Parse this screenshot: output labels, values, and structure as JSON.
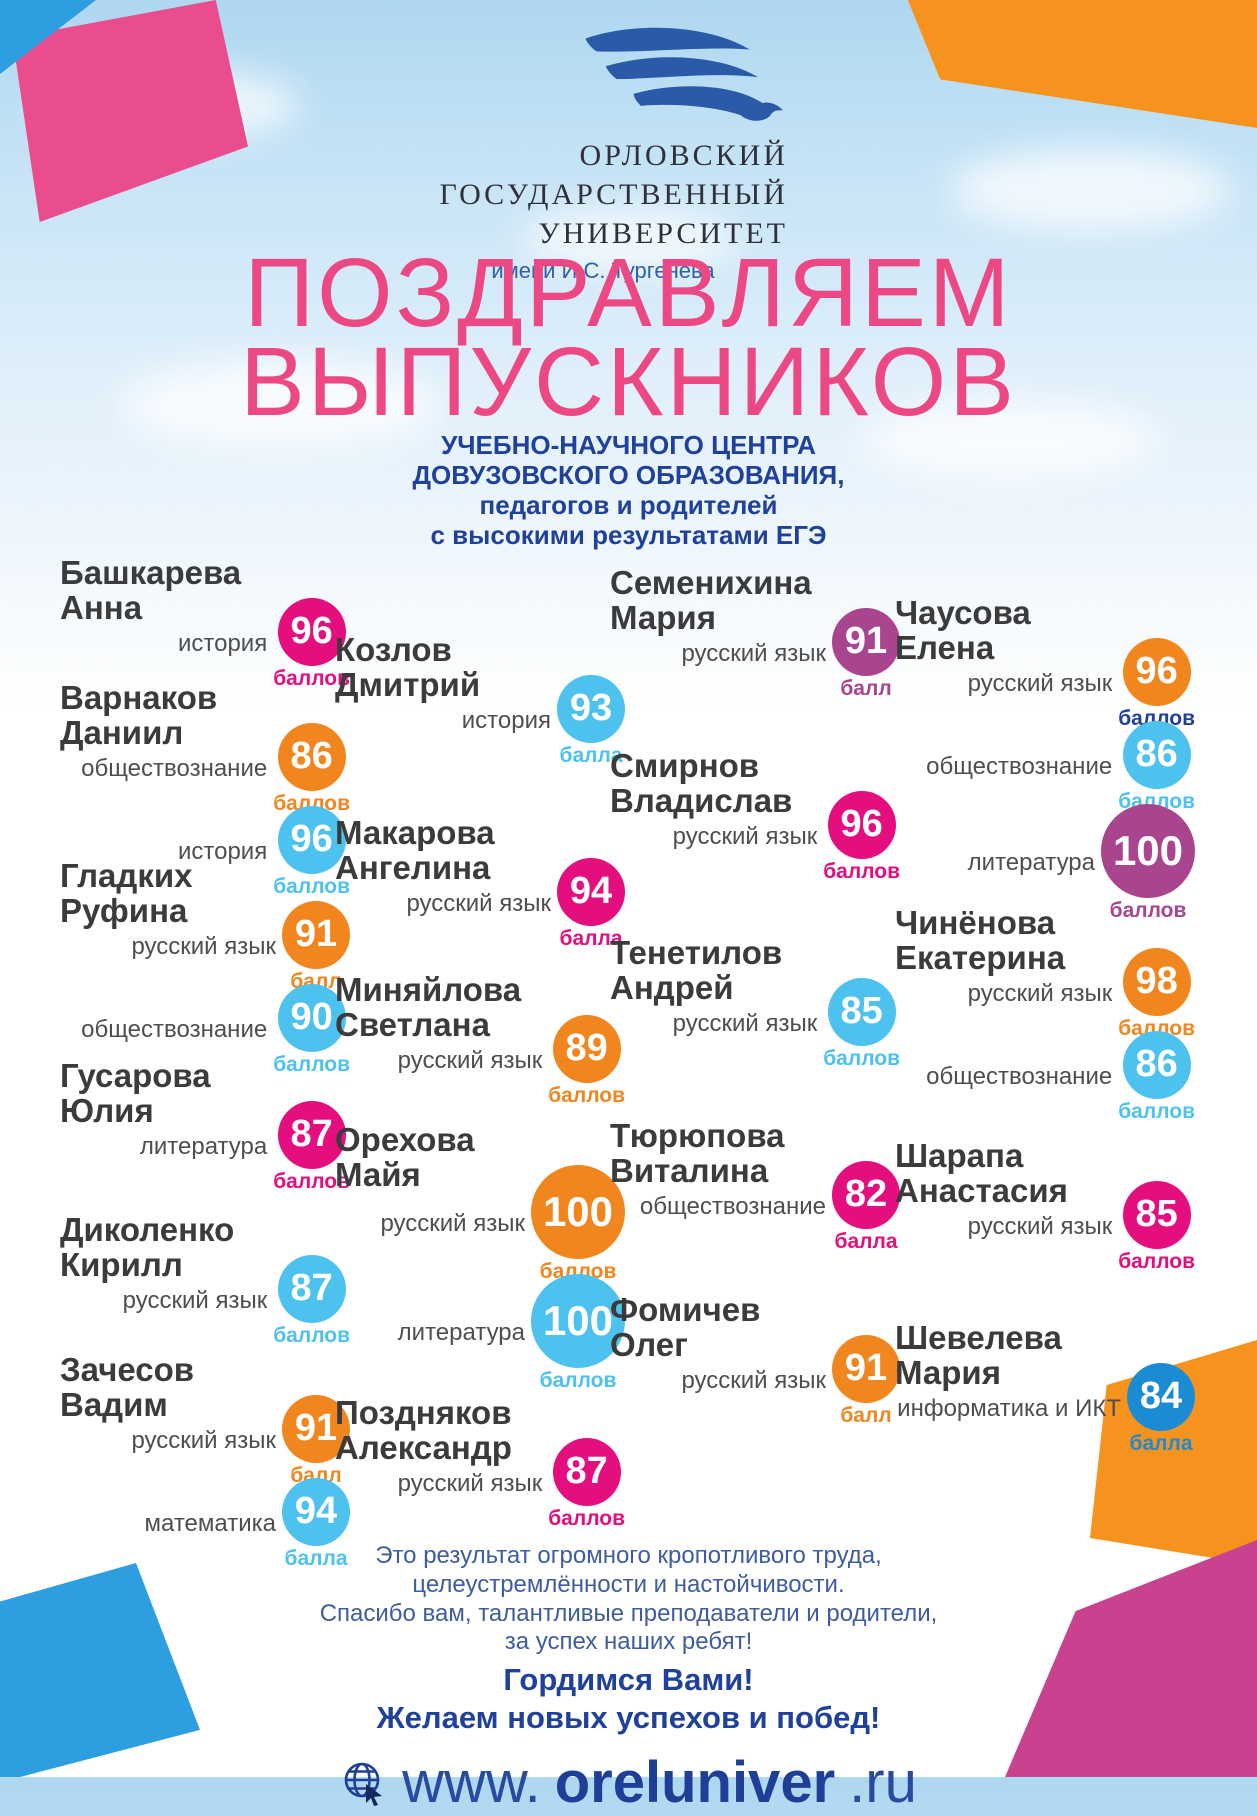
{
  "logo": {
    "line1": "ОРЛОВСКИЙ",
    "line2": "ГОСУДАРСТВЕННЫЙ",
    "line3": "УНИВЕРСИТЕТ",
    "subline": "имени И.С. Тургенева"
  },
  "title": {
    "line1": "ПОЗДРАВЛЯЕМ",
    "line2": "ВЫПУСКНИКОВ"
  },
  "subtitle": {
    "line1": "УЧЕБНО-НАУЧНОГО ЦЕНТРА",
    "line2": "ДОВУЗОВСКОГО ОБРАЗОВАНИЯ,",
    "line3": "педагогов и родителей",
    "line4": "с высокими результатами ЕГЭ"
  },
  "palette": {
    "pink": "#E40E7E",
    "orange": "#F1861F",
    "lightblue": "#4DC2EF",
    "blue": "#1B8BD3",
    "purple": "#A9458F",
    "navy": "#1F419B",
    "title_pink": "#EC4884"
  },
  "students": [
    {
      "name": [
        "Башкарева",
        "Анна"
      ],
      "scores": [
        {
          "subject": "история",
          "value": "96",
          "unit": "баллов",
          "color": "pink"
        }
      ]
    },
    {
      "name": [
        "Варнаков",
        "Даниил"
      ],
      "scores": [
        {
          "subject": "обществознание",
          "value": "86",
          "unit": "баллов",
          "color": "orange"
        },
        {
          "subject": "история",
          "value": "96",
          "unit": "баллов",
          "color": "lightblue"
        }
      ]
    },
    {
      "name": [
        "Гладких",
        "Руфина"
      ],
      "scores": [
        {
          "subject": "русский язык",
          "value": "91",
          "unit": "балл",
          "color": "orange"
        },
        {
          "subject": "обществознание",
          "value": "90",
          "unit": "баллов",
          "color": "lightblue"
        }
      ]
    },
    {
      "name": [
        "Гусарова",
        "Юлия"
      ],
      "scores": [
        {
          "subject": "литература",
          "value": "87",
          "unit": "баллов",
          "color": "pink"
        }
      ]
    },
    {
      "name": [
        "Диколенко",
        "Кирилл"
      ],
      "scores": [
        {
          "subject": "русский язык",
          "value": "87",
          "unit": "баллов",
          "color": "lightblue"
        }
      ]
    },
    {
      "name": [
        "Зачесов",
        "Вадим"
      ],
      "scores": [
        {
          "subject": "русский язык",
          "value": "91",
          "unit": "балл",
          "color": "orange"
        },
        {
          "subject": "математика",
          "value": "94",
          "unit": "балла",
          "color": "lightblue"
        }
      ]
    },
    {
      "name": [
        "Козлов",
        "Дмитрий"
      ],
      "scores": [
        {
          "subject": "история",
          "value": "93",
          "unit": "балла",
          "color": "lightblue"
        }
      ]
    },
    {
      "name": [
        "Макарова",
        "Ангелина"
      ],
      "scores": [
        {
          "subject": "русский язык",
          "value": "94",
          "unit": "балла",
          "color": "pink"
        }
      ]
    },
    {
      "name": [
        "Миняйлова",
        "Светлана"
      ],
      "scores": [
        {
          "subject": "русский язык",
          "value": "89",
          "unit": "баллов",
          "color": "orange"
        }
      ]
    },
    {
      "name": [
        "Орехова",
        "Майя"
      ],
      "scores": [
        {
          "subject": "русский язык",
          "value": "100",
          "unit": "баллов",
          "color": "orange"
        },
        {
          "subject": "литература",
          "value": "100",
          "unit": "баллов",
          "color": "lightblue"
        }
      ]
    },
    {
      "name": [
        "Поздняков",
        "Александр"
      ],
      "scores": [
        {
          "subject": "русский язык",
          "value": "87",
          "unit": "баллов",
          "color": "pink"
        }
      ]
    },
    {
      "name": [
        "Семенихина",
        "Мария"
      ],
      "scores": [
        {
          "subject": "русский язык",
          "value": "91",
          "unit": "балл",
          "color": "purple"
        }
      ]
    },
    {
      "name": [
        "Смирнов",
        "Владислав"
      ],
      "scores": [
        {
          "subject": "русский язык",
          "value": "96",
          "unit": "баллов",
          "color": "pink"
        }
      ]
    },
    {
      "name": [
        "Тенетилов",
        "Андрей"
      ],
      "scores": [
        {
          "subject": "русский язык",
          "value": "85",
          "unit": "баллов",
          "color": "lightblue"
        }
      ]
    },
    {
      "name": [
        "Тюрюпова",
        "Виталина"
      ],
      "scores": [
        {
          "subject": "обществознание",
          "value": "82",
          "unit": "балла",
          "color": "pink"
        }
      ]
    },
    {
      "name": [
        "Фомичев",
        "Олег"
      ],
      "scores": [
        {
          "subject": "русский язык",
          "value": "91",
          "unit": "балл",
          "color": "orange"
        }
      ]
    },
    {
      "name": [
        "Чаусова",
        "Елена"
      ],
      "scores": [
        {
          "subject": "русский язык",
          "value": "96",
          "unit": "баллов",
          "color": "orange",
          "label_color": "navy"
        },
        {
          "subject": "обществознание",
          "value": "86",
          "unit": "баллов",
          "color": "lightblue"
        },
        {
          "subject": "литература",
          "value": "100",
          "unit": "баллов",
          "color": "purple"
        }
      ]
    },
    {
      "name": [
        "Чинёнова",
        "Екатерина"
      ],
      "scores": [
        {
          "subject": "русский язык",
          "value": "98",
          "unit": "баллов",
          "color": "orange"
        },
        {
          "subject": "обществознание",
          "value": "86",
          "unit": "баллов",
          "color": "lightblue"
        }
      ]
    },
    {
      "name": [
        "Шарапа",
        "Анастасия"
      ],
      "scores": [
        {
          "subject": "русский язык",
          "value": "85",
          "unit": "баллов",
          "color": "pink"
        }
      ]
    },
    {
      "name": [
        "Шевелева",
        "Мария"
      ],
      "scores": [
        {
          "subject": "информатика и ИКТ",
          "value": "84",
          "unit": "балла",
          "color": "blue"
        }
      ]
    }
  ],
  "footer": {
    "line1": "Это результат огромного кропотливого труда,",
    "line2": "целеустремлённости и настойчивости.",
    "line3": "Спасибо вам, талантливые преподаватели и родители,",
    "line4": "за успех наших ребят!",
    "bold1": "Гордимся Вами!",
    "bold2": "Желаем новых успехов и побед!",
    "url": {
      "www": "www.",
      "domain": "oreluniver",
      "ru": ".ru"
    }
  }
}
